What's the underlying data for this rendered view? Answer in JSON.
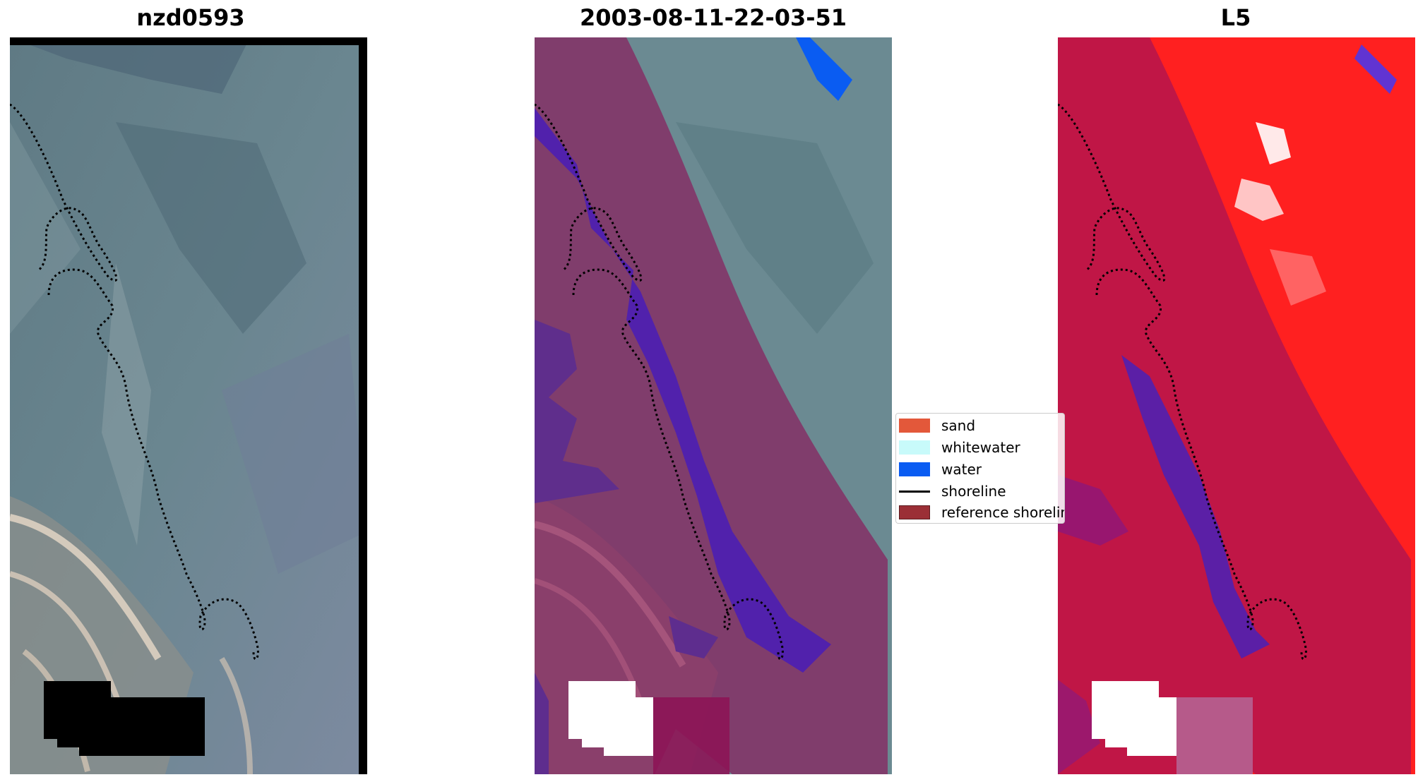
{
  "titles": {
    "left": "nzd0593",
    "middle": "2003-08-11-22-03-51",
    "right": "L5"
  },
  "legend": {
    "items": [
      {
        "label": "sand",
        "kind": "patch",
        "color": "#e3583a"
      },
      {
        "label": "whitewater",
        "kind": "patch",
        "color": "#c8fafa"
      },
      {
        "label": "water",
        "kind": "patch",
        "color": "#0a5cf2"
      },
      {
        "label": "shoreline",
        "kind": "line",
        "color": "#000000"
      },
      {
        "label": "reference shoreline buffer",
        "kind": "patch",
        "color": "#9b2f36"
      }
    ]
  },
  "colors": {
    "buffer_overlay": "#8c1457",
    "water": "#0a5cf2",
    "index_positive": "#ff1a1a",
    "index_negative": "#1a1aff",
    "nodata": "#000000"
  }
}
